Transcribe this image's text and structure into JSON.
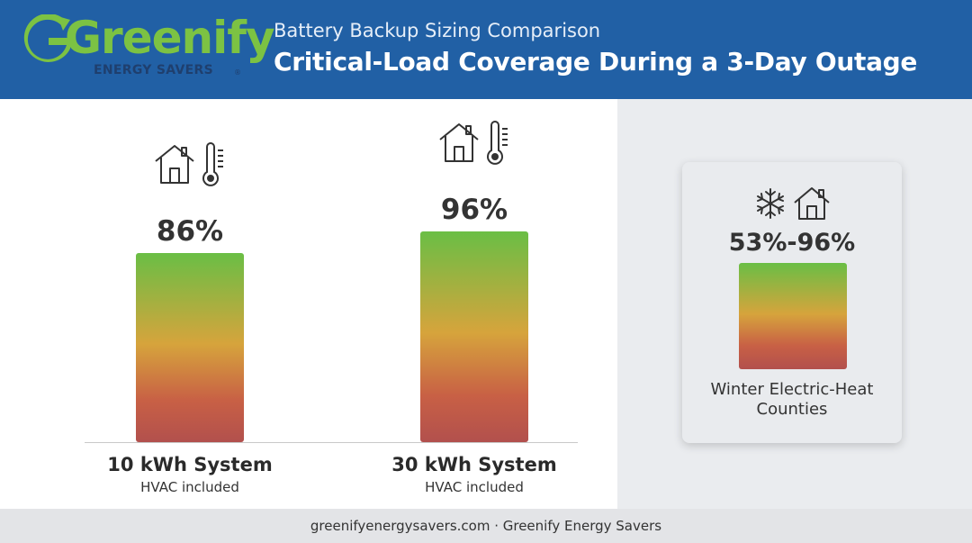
{
  "brand": {
    "logo_name": "Greenify",
    "logo_sub": "ENERGY SAVERS",
    "reg_mark": "®"
  },
  "header": {
    "supertitle": "Battery Backup Sizing Comparison",
    "title": "Critical-Load Coverage During a 3-Day Outage"
  },
  "chart_data": {
    "type": "bar",
    "categories": [
      "10 kWh System",
      "30 kWh System"
    ],
    "subtitles": [
      "HVAC included",
      "HVAC included"
    ],
    "values": [
      86,
      96
    ],
    "value_labels": [
      "86%",
      "96%"
    ],
    "ylim": [
      0,
      100
    ],
    "unit": "%",
    "icons": [
      "house-thermometer-icon",
      "house-thermometer-icon"
    ],
    "bar_gradient": [
      "#6abe45",
      "#d6a43c",
      "#c86045",
      "#b2504d"
    ]
  },
  "callout": {
    "range_low": 53,
    "range_high": 96,
    "range_label": "53%-96%",
    "label_line1": "Winter Electric-Heat",
    "label_line2": "Counties",
    "icons": [
      "snowflake-icon",
      "house-icon"
    ]
  },
  "footer": {
    "text": "greenifyenergysavers.com · Greenify Energy Savers"
  },
  "colors": {
    "header_bg": "#2160a5",
    "brand_green": "#7cc243",
    "brand_navy": "#1f3f6e"
  }
}
